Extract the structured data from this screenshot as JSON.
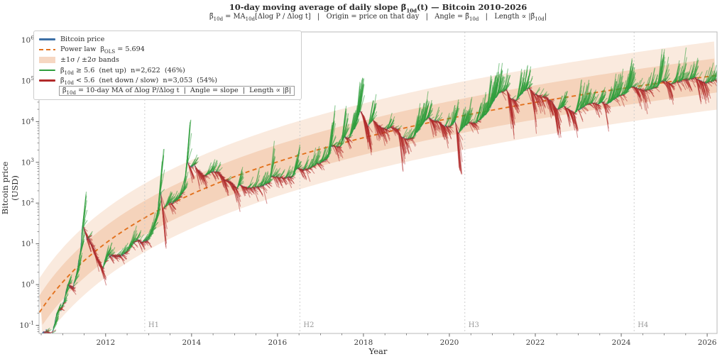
{
  "text": {
    "title": [
      {
        "t": "10-day moving average of daily slope "
      },
      {
        "t": "β̃"
      },
      {
        "t": "10d",
        "sub": true
      },
      {
        "t": "(t) — Bitcoin 2010-2026"
      }
    ],
    "subtitle": [
      {
        "t": "β̃"
      },
      {
        "t": "10d",
        "sub": true
      },
      {
        "t": " = MA"
      },
      {
        "t": "10d",
        "sub": true
      },
      {
        "t": "[Δlog P / Δlog t]   |   Origin = price on that day   |   Angle = "
      },
      {
        "t": "β̃"
      },
      {
        "t": "10d",
        "sub": true
      },
      {
        "t": "   |   Length ∝ |"
      },
      {
        "t": "β̃"
      },
      {
        "t": "10d",
        "sub": true
      },
      {
        "t": "|"
      }
    ]
  },
  "legend": {
    "rows": [
      {
        "key": "bitcoin-price",
        "swatch": "line",
        "color": "#3c6fa5",
        "parts": [
          {
            "t": "Bitcoin price"
          }
        ]
      },
      {
        "key": "power-law",
        "swatch": "dashed",
        "color": "#e2711d",
        "parts": [
          {
            "t": "Power law  β"
          },
          {
            "t": "OLS",
            "sub": true
          },
          {
            "t": " = 5.694"
          }
        ]
      },
      {
        "key": "sigma-bands",
        "swatch": "patch",
        "color": "#f6d7c2",
        "parts": [
          {
            "t": "±1σ / ±2σ bands"
          }
        ]
      },
      {
        "key": "net-up",
        "swatch": "line",
        "color": "#2f9e3d",
        "parts": [
          {
            "t": "β̃"
          },
          {
            "t": "10d",
            "sub": true
          },
          {
            "t": " ≥ 5.6  (net up)  n=2,622  (46%)"
          }
        ]
      },
      {
        "key": "net-down",
        "swatch": "line",
        "color": "#b22a2a",
        "parts": [
          {
            "t": "β̃"
          },
          {
            "t": "10d",
            "sub": true
          },
          {
            "t": " < 5.6  (net down / slow)  n=3,053  (54%)"
          }
        ]
      },
      {
        "key": "note",
        "swatch": "none",
        "boxed": true,
        "parts": [
          {
            "t": "β̃"
          },
          {
            "t": "10d",
            "sub": true
          },
          {
            "t": " = 10-day MA of Δlog P/Δlog t  |  Angle = slope  |  Length ∝ |β̃|"
          }
        ]
      }
    ]
  },
  "chart_data": {
    "type": "line",
    "title": "10-day moving average of daily slope β̃10d(t) — Bitcoin 2010-2026",
    "xlabel": "Year",
    "ylabel": "Bitcoin price (USD)",
    "x_range": [
      2010.45,
      2026.23
    ],
    "x_major_ticks": [
      2012,
      2014,
      2016,
      2018,
      2020,
      2022,
      2024,
      2026
    ],
    "x_minor_step_years": 0.5,
    "y_scale": "log10",
    "y_tick_base": "10",
    "y_tick_exponents": [
      -1,
      0,
      1,
      2,
      3,
      4,
      5,
      6
    ],
    "y_range_log10": [
      -1.2,
      6.2
    ],
    "grid": false,
    "legend_position": "upper-left",
    "slope_threshold": 5.6,
    "counts": {
      "net_up": 2622,
      "net_up_pct": 46,
      "net_down": 3053,
      "net_down_pct": 54
    },
    "power_law_fit": {
      "beta_ols": 5.694,
      "t_origin_year": 2009,
      "drawn_intercept_log10usd": -1.574,
      "drawn_slope": 5.426,
      "sigma_decades": 0.42
    },
    "halvings": [
      {
        "label": "H1",
        "year": 2012.91
      },
      {
        "label": "H2",
        "year": 2016.52
      },
      {
        "label": "H3",
        "year": 2020.36
      },
      {
        "label": "H4",
        "year": 2024.3
      }
    ],
    "price_keypoints_year_usd": [
      [
        2010.53,
        0.06
      ],
      [
        2010.62,
        0.07
      ],
      [
        2010.75,
        0.06
      ],
      [
        2010.87,
        0.2
      ],
      [
        2011.0,
        0.3
      ],
      [
        2011.12,
        0.95
      ],
      [
        2011.25,
        0.85
      ],
      [
        2011.33,
        2.0
      ],
      [
        2011.42,
        8.0
      ],
      [
        2011.46,
        29
      ],
      [
        2011.55,
        15
      ],
      [
        2011.65,
        11
      ],
      [
        2011.8,
        4.5
      ],
      [
        2011.92,
        2.3
      ],
      [
        2012.05,
        5.5
      ],
      [
        2012.2,
        4.9
      ],
      [
        2012.35,
        5.1
      ],
      [
        2012.5,
        6.6
      ],
      [
        2012.63,
        10.5
      ],
      [
        2012.72,
        12.5
      ],
      [
        2012.85,
        10.8
      ],
      [
        2013.0,
        13.5
      ],
      [
        2013.12,
        25
      ],
      [
        2013.2,
        47
      ],
      [
        2013.27,
        230
      ],
      [
        2013.32,
        70
      ],
      [
        2013.45,
        100
      ],
      [
        2013.55,
        97
      ],
      [
        2013.7,
        130
      ],
      [
        2013.82,
        210
      ],
      [
        2013.9,
        1100
      ],
      [
        2013.96,
        750
      ],
      [
        2014.05,
        850
      ],
      [
        2014.15,
        620
      ],
      [
        2014.3,
        450
      ],
      [
        2014.45,
        590
      ],
      [
        2014.6,
        600
      ],
      [
        2014.75,
        380
      ],
      [
        2014.9,
        330
      ],
      [
        2015.05,
        210
      ],
      [
        2015.1,
        290
      ],
      [
        2015.25,
        235
      ],
      [
        2015.45,
        230
      ],
      [
        2015.6,
        260
      ],
      [
        2015.8,
        310
      ],
      [
        2015.85,
        460
      ],
      [
        2016.0,
        430
      ],
      [
        2016.15,
        415
      ],
      [
        2016.35,
        450
      ],
      [
        2016.45,
        750
      ],
      [
        2016.55,
        650
      ],
      [
        2016.75,
        710
      ],
      [
        2016.9,
        900
      ],
      [
        2017.0,
        1000
      ],
      [
        2017.15,
        1180
      ],
      [
        2017.25,
        2600
      ],
      [
        2017.45,
        2300
      ],
      [
        2017.55,
        4200
      ],
      [
        2017.65,
        3800
      ],
      [
        2017.8,
        7200
      ],
      [
        2017.92,
        19000
      ],
      [
        2018.0,
        13500
      ],
      [
        2018.1,
        7500
      ],
      [
        2018.2,
        11000
      ],
      [
        2018.35,
        7900
      ],
      [
        2018.5,
        6400
      ],
      [
        2018.65,
        7300
      ],
      [
        2018.8,
        6400
      ],
      [
        2018.88,
        4100
      ],
      [
        2019.0,
        3650
      ],
      [
        2019.15,
        4000
      ],
      [
        2019.35,
        8000
      ],
      [
        2019.5,
        12900
      ],
      [
        2019.6,
        10500
      ],
      [
        2019.75,
        10200
      ],
      [
        2019.85,
        7800
      ],
      [
        2020.0,
        7200
      ],
      [
        2020.13,
        10300
      ],
      [
        2020.2,
        5000
      ],
      [
        2020.3,
        6800
      ],
      [
        2020.45,
        9400
      ],
      [
        2020.6,
        9100
      ],
      [
        2020.72,
        11500
      ],
      [
        2020.85,
        15500
      ],
      [
        2020.95,
        23000
      ],
      [
        2021.05,
        35000
      ],
      [
        2021.15,
        49000
      ],
      [
        2021.28,
        58000
      ],
      [
        2021.32,
        63000
      ],
      [
        2021.42,
        37000
      ],
      [
        2021.55,
        33000
      ],
      [
        2021.65,
        45000
      ],
      [
        2021.78,
        62000
      ],
      [
        2021.85,
        66000
      ],
      [
        2021.95,
        48000
      ],
      [
        2022.1,
        42000
      ],
      [
        2022.25,
        39000
      ],
      [
        2022.4,
        29000
      ],
      [
        2022.5,
        19500
      ],
      [
        2022.65,
        23500
      ],
      [
        2022.8,
        19500
      ],
      [
        2022.9,
        16000
      ],
      [
        2023.05,
        21000
      ],
      [
        2023.15,
        24500
      ],
      [
        2023.3,
        28500
      ],
      [
        2023.45,
        26500
      ],
      [
        2023.55,
        30500
      ],
      [
        2023.65,
        26000
      ],
      [
        2023.8,
        34500
      ],
      [
        2023.95,
        43000
      ],
      [
        2024.1,
        48000
      ],
      [
        2024.2,
        68000
      ],
      [
        2024.28,
        71000
      ],
      [
        2024.4,
        63500
      ],
      [
        2024.55,
        57000
      ],
      [
        2024.7,
        64000
      ],
      [
        2024.82,
        69000
      ],
      [
        2024.92,
        98000
      ],
      [
        2025.05,
        97000
      ],
      [
        2025.15,
        84000
      ],
      [
        2025.3,
        94000
      ],
      [
        2025.45,
        108000
      ],
      [
        2025.55,
        105000
      ],
      [
        2025.7,
        118000
      ],
      [
        2025.85,
        98000
      ],
      [
        2025.95,
        88000
      ],
      [
        2026.1,
        96000
      ],
      [
        2026.22,
        103000
      ]
    ],
    "colors": {
      "price_line": "#3c6fa5",
      "power_law": "#e2711d",
      "band_inner": "#f5d3bb",
      "band_outer": "#faeade",
      "net_up": "#2f9e3d",
      "net_down": "#b22a2a",
      "halving_line": "#c9c9c9",
      "halving_text": "#9a9a9a",
      "spine": "#b9b9b9",
      "tick": "#555555",
      "tick_label": "#3d3d3d"
    }
  }
}
